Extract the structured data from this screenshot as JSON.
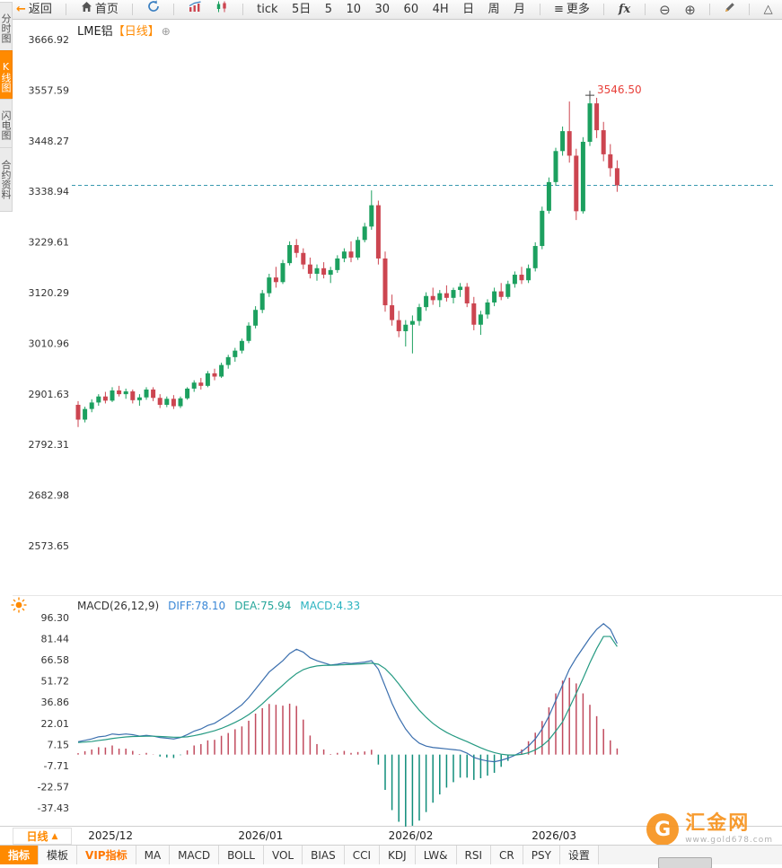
{
  "toolbar": {
    "back": "返回",
    "home": "首页",
    "periods": [
      "tick",
      "5日",
      "5",
      "10",
      "30",
      "60",
      "4H",
      "日",
      "周",
      "月"
    ],
    "more": "更多",
    "fx": "fx"
  },
  "left_tabs": [
    {
      "label": "分时图",
      "active": false
    },
    {
      "label": "K线图",
      "active": true
    },
    {
      "label": "闪电图",
      "active": false
    },
    {
      "label": "合约资料",
      "active": false
    }
  ],
  "chart": {
    "symbol": "LME铝",
    "period_tag": "【日线】"
  },
  "macd_header": {
    "name": "MACD(26,12,9)",
    "diff": "DIFF:78.10",
    "dea": "DEA:75.94",
    "macd": "MACD:4.33"
  },
  "bottom": {
    "period_label": "日线",
    "tabs": [
      {
        "label": "指标"
      },
      {
        "label": "模板"
      },
      {
        "label": "VIP指标"
      },
      {
        "label": "MA"
      },
      {
        "label": "MACD"
      },
      {
        "label": "BOLL"
      },
      {
        "label": "VOL"
      },
      {
        "label": "BIAS"
      },
      {
        "label": "CCI"
      },
      {
        "label": "KDJ"
      },
      {
        "label": "LW&"
      },
      {
        "label": "RSI"
      },
      {
        "label": "CR"
      },
      {
        "label": "PSY"
      },
      {
        "label": "设置"
      }
    ]
  },
  "watermark": {
    "name": "汇金网",
    "url": "www.gold678.com"
  },
  "colors": {
    "up": "#1ca05f",
    "down": "#cc4550",
    "hist_pos": "#c14b5e",
    "hist_neg": "#0f8d7a",
    "diff_line": "#3b6fae",
    "dea_line": "#259a82",
    "dashed": "#3a9ab0",
    "accent": "#ff8a00",
    "peak_text": "#e8403a"
  },
  "chart_data": {
    "type": "candlestick",
    "title": "LME铝 日线",
    "last_price": 3352,
    "peak": {
      "index": 75,
      "price": 3546.5,
      "label": "3546.50"
    },
    "price_ticks": [
      3666.92,
      3557.59,
      3448.27,
      3338.94,
      3229.61,
      3120.29,
      3010.96,
      2901.63,
      2792.31,
      2682.98,
      2573.65
    ],
    "x_labels": [
      {
        "label": "2025/12",
        "index": 2
      },
      {
        "label": "2026/01",
        "index": 24
      },
      {
        "label": "2026/02",
        "index": 46
      },
      {
        "label": "2026/03",
        "index": 67
      }
    ],
    "candles": [
      [
        2878,
        2886,
        2830,
        2846
      ],
      [
        2846,
        2874,
        2840,
        2869
      ],
      [
        2869,
        2890,
        2862,
        2883
      ],
      [
        2883,
        2901,
        2876,
        2896
      ],
      [
        2896,
        2906,
        2881,
        2887
      ],
      [
        2887,
        2916,
        2884,
        2909
      ],
      [
        2909,
        2919,
        2896,
        2901
      ],
      [
        2901,
        2913,
        2891,
        2907
      ],
      [
        2907,
        2911,
        2881,
        2888
      ],
      [
        2888,
        2901,
        2876,
        2894
      ],
      [
        2894,
        2916,
        2889,
        2911
      ],
      [
        2911,
        2916,
        2886,
        2893
      ],
      [
        2893,
        2901,
        2871,
        2878
      ],
      [
        2878,
        2896,
        2873,
        2891
      ],
      [
        2891,
        2899,
        2869,
        2875
      ],
      [
        2875,
        2896,
        2871,
        2892
      ],
      [
        2892,
        2916,
        2889,
        2913
      ],
      [
        2913,
        2931,
        2906,
        2926
      ],
      [
        2926,
        2936,
        2911,
        2919
      ],
      [
        2919,
        2951,
        2916,
        2946
      ],
      [
        2946,
        2956,
        2931,
        2939
      ],
      [
        2939,
        2969,
        2936,
        2964
      ],
      [
        2964,
        2986,
        2956,
        2981
      ],
      [
        2981,
        3001,
        2971,
        2995
      ],
      [
        2995,
        3021,
        2989,
        3016
      ],
      [
        3016,
        3056,
        3011,
        3049
      ],
      [
        3049,
        3091,
        3043,
        3083
      ],
      [
        3083,
        3126,
        3076,
        3119
      ],
      [
        3119,
        3161,
        3111,
        3153
      ],
      [
        3153,
        3176,
        3131,
        3143
      ],
      [
        3143,
        3191,
        3139,
        3184
      ],
      [
        3184,
        3231,
        3179,
        3223
      ],
      [
        3223,
        3236,
        3196,
        3206
      ],
      [
        3206,
        3216,
        3171,
        3181
      ],
      [
        3181,
        3196,
        3151,
        3161
      ],
      [
        3161,
        3181,
        3146,
        3173
      ],
      [
        3173,
        3186,
        3151,
        3159
      ],
      [
        3159,
        3176,
        3141,
        3169
      ],
      [
        3169,
        3201,
        3163,
        3194
      ],
      [
        3194,
        3216,
        3186,
        3209
      ],
      [
        3209,
        3231,
        3186,
        3196
      ],
      [
        3196,
        3241,
        3191,
        3234
      ],
      [
        3234,
        3271,
        3229,
        3263
      ],
      [
        3263,
        3341,
        3256,
        3309
      ],
      [
        3309,
        3319,
        3181,
        3194
      ],
      [
        3194,
        3209,
        3079,
        3093
      ],
      [
        3093,
        3116,
        3049,
        3061
      ],
      [
        3061,
        3081,
        3024,
        3037
      ],
      [
        3037,
        3061,
        3004,
        3051
      ],
      [
        3051,
        3071,
        2989,
        3059
      ],
      [
        3059,
        3096,
        3049,
        3089
      ],
      [
        3089,
        3121,
        3081,
        3113
      ],
      [
        3113,
        3131,
        3094,
        3104
      ],
      [
        3104,
        3126,
        3089,
        3119
      ],
      [
        3119,
        3136,
        3101,
        3109
      ],
      [
        3109,
        3131,
        3097,
        3126
      ],
      [
        3126,
        3141,
        3111,
        3133
      ],
      [
        3133,
        3141,
        3089,
        3097
      ],
      [
        3097,
        3111,
        3039,
        3051
      ],
      [
        3051,
        3081,
        3029,
        3073
      ],
      [
        3073,
        3106,
        3064,
        3099
      ],
      [
        3099,
        3131,
        3091,
        3123
      ],
      [
        3123,
        3141,
        3104,
        3111
      ],
      [
        3111,
        3146,
        3107,
        3139
      ],
      [
        3139,
        3166,
        3131,
        3159
      ],
      [
        3159,
        3176,
        3139,
        3147
      ],
      [
        3147,
        3181,
        3141,
        3173
      ],
      [
        3173,
        3229,
        3166,
        3221
      ],
      [
        3221,
        3306,
        3214,
        3297
      ],
      [
        3297,
        3369,
        3291,
        3359
      ],
      [
        3359,
        3433,
        3351,
        3426
      ],
      [
        3426,
        3479,
        3416,
        3469
      ],
      [
        3469,
        3533,
        3401,
        3416
      ],
      [
        3416,
        3431,
        3277,
        3296
      ],
      [
        3296,
        3456,
        3291,
        3446
      ],
      [
        3446,
        3546.5,
        3437,
        3529
      ],
      [
        3529,
        3541,
        3454,
        3471
      ],
      [
        3471,
        3489,
        3404,
        3419
      ],
      [
        3419,
        3441,
        3371,
        3389
      ],
      [
        3389,
        3406,
        3338,
        3352
      ]
    ],
    "indicator": {
      "name": "MACD",
      "params": "(26,12,9)",
      "ticks": [
        96.3,
        81.44,
        66.58,
        51.72,
        36.86,
        22.01,
        7.15,
        -7.71,
        -22.57,
        -37.43
      ],
      "hist_rule": "2*(diff-dea)",
      "diff": [
        9,
        10,
        11,
        12.5,
        13,
        14.5,
        14,
        14.5,
        14,
        13,
        13.5,
        13,
        12,
        11.5,
        11,
        12,
        14,
        16.5,
        18,
        20.5,
        22,
        25,
        28,
        31.5,
        35,
        40,
        46,
        52,
        58,
        62,
        66,
        71,
        74,
        72,
        68,
        66,
        64.5,
        63,
        63.5,
        64.5,
        64,
        64.5,
        65,
        66,
        60,
        48,
        36,
        26,
        18,
        12,
        8,
        6,
        5,
        4.5,
        4,
        3.5,
        3,
        1,
        -2,
        -3.5,
        -4.5,
        -5,
        -4,
        -2.5,
        -0.5,
        2,
        6,
        11,
        18,
        27,
        38,
        49,
        60,
        68,
        75,
        82,
        88,
        92,
        88,
        78.1
      ],
      "dea": [
        8.5,
        8.8,
        9.2,
        9.9,
        10.5,
        11.3,
        11.9,
        12.4,
        12.7,
        12.8,
        12.9,
        12.9,
        12.7,
        12.5,
        12.2,
        12.2,
        12.5,
        13.3,
        14.3,
        15.5,
        16.8,
        18.4,
        20.4,
        22.6,
        25.1,
        28.1,
        31.6,
        35.7,
        40.2,
        44.5,
        48.8,
        53.1,
        56.9,
        59.7,
        61.3,
        62.3,
        62.7,
        62.8,
        62.9,
        63.2,
        63.4,
        63.6,
        63.9,
        64.3,
        63.5,
        60.4,
        55.5,
        49.6,
        43.3,
        37.0,
        31.2,
        26.2,
        21.9,
        18.5,
        15.6,
        13.2,
        11.1,
        9.1,
        6.9,
        4.8,
        2.9,
        1.4,
        0.3,
        -0.3,
        -0.3,
        0.2,
        1.3,
        3.3,
        6.2,
        10.4,
        16.5,
        23,
        33,
        43,
        53.5,
        64.5,
        74.5,
        83,
        83,
        75.94
      ]
    }
  }
}
